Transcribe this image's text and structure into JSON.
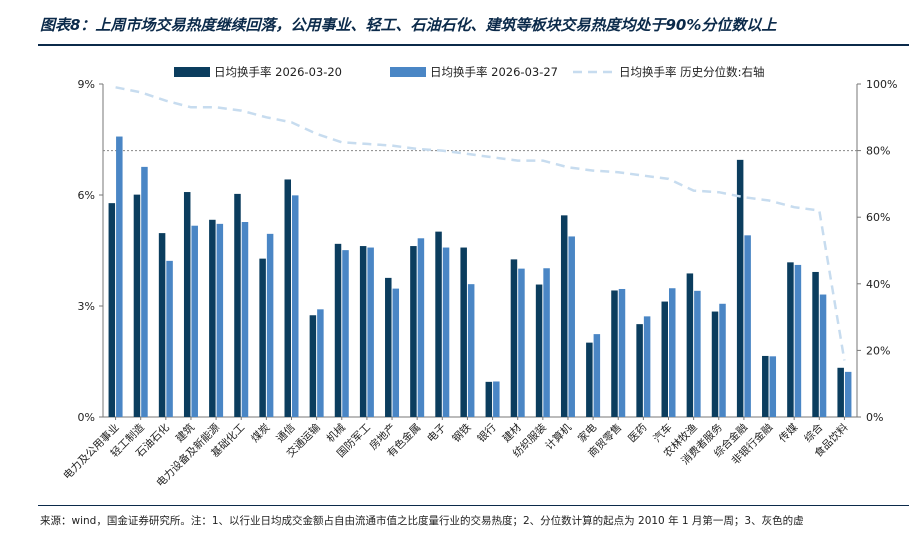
{
  "header": {
    "title": "图表8：上周市场交易热度继续回落，公用事业、轻工、石油石化、建筑等板块交易热度均处于90%分位数以上"
  },
  "footer": {
    "source": "来源：wind，国金证券研究所。注：1、以行业日均成交金额占自由流通市值之比度量行业的交易热度；2、分位数计算的起点为 2010 年 1 月第一周；3、灰色的虚"
  },
  "colors": {
    "series1": "#0b3d5e",
    "series2": "#4a86c5",
    "series3": "#c7dcef",
    "ref_line": "#888888",
    "axis": "#777777"
  },
  "chart_data": {
    "type": "bar",
    "categories": [
      "电力及公用事业",
      "轻工制造",
      "石油石化",
      "建筑",
      "电力设备及新能源",
      "基础化工",
      "煤炭",
      "通信",
      "交通运输",
      "机械",
      "国防军工",
      "房地产",
      "有色金属",
      "电子",
      "钢铁",
      "银行",
      "建材",
      "纺织服装",
      "计算机",
      "家电",
      "商贸零售",
      "医药",
      "汽车",
      "农林牧渔",
      "消费者服务",
      "综合金融",
      "非银行金融",
      "传媒",
      "综合",
      "食品饮料"
    ],
    "series": [
      {
        "name": "日均换手率 2026-03-20",
        "axis": "left",
        "values": [
          5.78,
          6.01,
          4.97,
          6.08,
          5.33,
          6.03,
          4.28,
          6.42,
          2.75,
          4.68,
          4.62,
          3.76,
          4.62,
          5.01,
          4.58,
          0.95,
          4.26,
          3.58,
          5.45,
          2.01,
          3.42,
          2.51,
          3.12,
          3.88,
          2.85,
          6.95,
          1.65,
          4.18,
          3.92,
          1.33
        ]
      },
      {
        "name": "日均换手率 2026-03-27",
        "axis": "left",
        "values": [
          7.58,
          6.76,
          4.22,
          5.17,
          5.22,
          5.27,
          4.95,
          5.99,
          2.91,
          4.51,
          4.58,
          3.47,
          4.83,
          4.58,
          3.59,
          0.96,
          4.01,
          4.02,
          4.88,
          2.24,
          3.46,
          2.72,
          3.48,
          3.41,
          3.06,
          4.91,
          1.64,
          4.11,
          3.31,
          1.22
        ]
      },
      {
        "name": "日均换手率 历史分位数:右轴",
        "axis": "right",
        "style": "dashed-line",
        "values": [
          99,
          97.5,
          95,
          93,
          93,
          92,
          90,
          88.5,
          85,
          82.5,
          82,
          81.5,
          80.5,
          80,
          79,
          78,
          77,
          77,
          75,
          74,
          73.5,
          72.5,
          71.5,
          68,
          67.5,
          66,
          65,
          63,
          62,
          17
        ]
      }
    ],
    "y_left": {
      "min": 0,
      "max": 9,
      "ticks": [
        "0%",
        "3%",
        "6%",
        "9%"
      ],
      "tick_values": [
        0,
        3,
        6,
        9
      ]
    },
    "y_right": {
      "min": 0,
      "max": 100,
      "ticks": [
        "0%",
        "20%",
        "40%",
        "60%",
        "80%",
        "100%"
      ],
      "tick_values": [
        0,
        20,
        40,
        60,
        80,
        100
      ]
    },
    "reference_line_right": 80,
    "legend_position": "top",
    "grid": false
  }
}
